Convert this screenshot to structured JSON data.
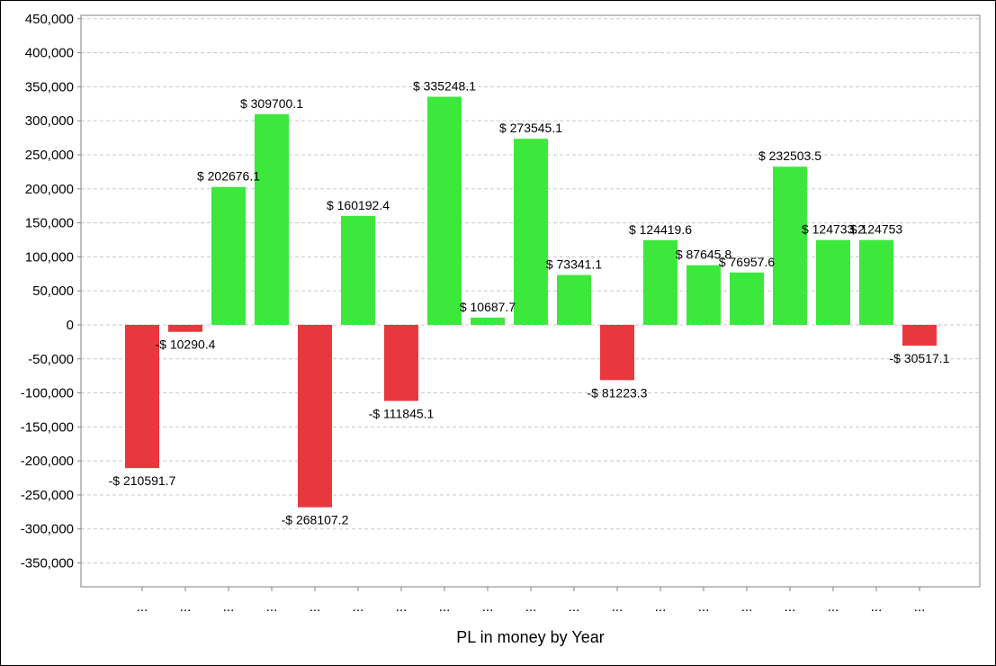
{
  "chart_data": {
    "type": "bar",
    "title": "",
    "xlabel": "PL in money by Year",
    "ylabel": "",
    "ylim": [
      -385000,
      455000
    ],
    "yticks": [
      450000,
      400000,
      350000,
      300000,
      250000,
      200000,
      150000,
      100000,
      50000,
      0,
      -50000,
      -100000,
      -150000,
      -200000,
      -250000,
      -300000,
      -350000
    ],
    "ytick_labels": [
      "450,000",
      "400,000",
      "350,000",
      "300,000",
      "250,000",
      "200,000",
      "150,000",
      "100,000",
      "50,000",
      "0",
      "-50,000",
      "-100,000",
      "-150,000",
      "-200,000",
      "-250,000",
      "-300,000",
      "-350,000"
    ],
    "grid": true,
    "legend": "none",
    "categories": [
      "...",
      "...",
      "...",
      "...",
      "...",
      "...",
      "...",
      "...",
      "...",
      "...",
      "...",
      "...",
      "...",
      "...",
      "...",
      "...",
      "...",
      "...",
      "..."
    ],
    "values": [
      -210591.7,
      -10290.4,
      202676.1,
      309700.1,
      -268107.2,
      160192.4,
      -111845.1,
      335248.1,
      10687.7,
      273545.1,
      73341.1,
      -81223.3,
      124419.6,
      87645.8,
      76957.6,
      232503.5,
      124733.2,
      124753,
      -30517.1
    ],
    "data_labels": [
      "-$ 210591.7",
      "-$ 10290.4",
      "$ 202676.1",
      "$ 309700.1",
      "-$ 268107.2",
      "$ 160192.4",
      "-$ 111845.1",
      "$ 335248.1",
      "$ 10687.7",
      "$ 273545.1",
      "$ 73341.1",
      "-$ 81223.3",
      "$ 124419.6",
      "$ 87645.8",
      "$ 76957.6",
      "$ 232503.5",
      "$ 124733.2",
      "$ 124753",
      "-$ 30517.1"
    ],
    "colors": {
      "positive": "#3ce83c",
      "negative": "#e8383e",
      "grid": "#c8c8c8",
      "axis": "#808080"
    }
  }
}
